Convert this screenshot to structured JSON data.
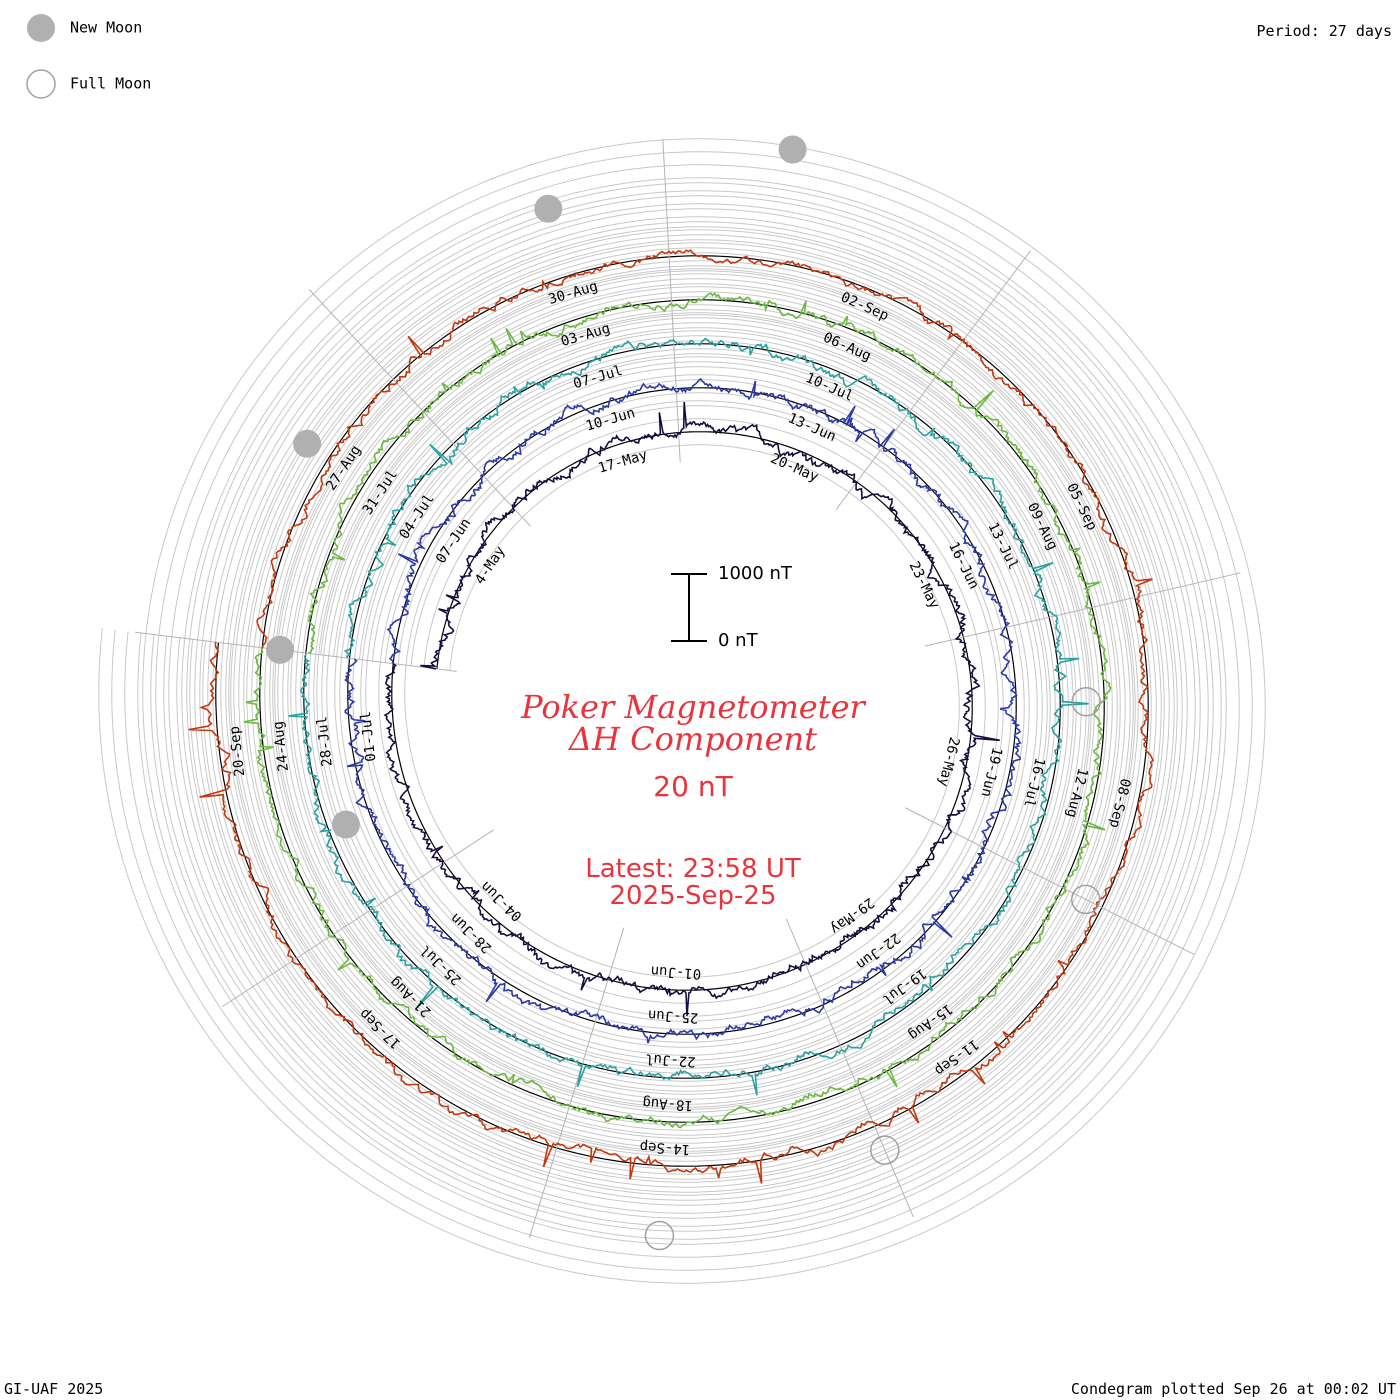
{
  "page": {
    "period_label": "Period: 27 days",
    "footer_left": "GI-UAF 2025",
    "footer_right": "Condegram plotted Sep 26 at 00:02 UT"
  },
  "legend": {
    "new_moon_label": "New Moon",
    "full_moon_label": "Full Moon",
    "new_moon_color": "#b0b0b0",
    "full_moon_color": "#a0a0a0"
  },
  "center": {
    "title_line1": "Poker Magnetometer",
    "title_line2": "ΔH Component",
    "value": "20 nT",
    "latest": "Latest: 23:58 UT",
    "date": "2025-Sep-25",
    "scale_top": "1000 nT",
    "scale_bottom": "0 nT",
    "title_color": "#e8343c"
  },
  "chart_data": {
    "type": "line",
    "title": "Poker Magnetometer ΔH Component",
    "subtitle": "20 nT",
    "period_days": 27,
    "latest": "Latest: 23:58 UT",
    "latest_date": "2025-Sep-25",
    "scale_bar": [
      "0 nT",
      "1000 nT"
    ],
    "turns": [
      {
        "start": "2025-05-02",
        "color": "#1a0a40",
        "labels": [
          "4-May",
          "17-May",
          "20-May",
          "23-May",
          "26-May",
          "29-May",
          "01-Jun",
          "04-Jun"
        ]
      },
      {
        "start": "2025-05-29",
        "color": "#2a3aa6",
        "labels": [
          "07-Jun",
          "10-Jun",
          "13-Jun",
          "16-Jun",
          "19-Jun",
          "22-Jun",
          "25-Jun",
          "28-Jun",
          "01-Jul"
        ]
      },
      {
        "start": "2025-06-25",
        "color": "#2aa0a0",
        "labels": [
          "04-Jul",
          "07-Jul",
          "10-Jul",
          "13-Jul",
          "16-Jul",
          "19-Jul",
          "22-Jul",
          "25-Jul",
          "28-Jul"
        ]
      },
      {
        "start": "2025-07-22",
        "color": "#6ab840",
        "labels": [
          "31-Jul",
          "03-Aug",
          "06-Aug",
          "09-Aug",
          "12-Aug",
          "15-Aug",
          "18-Aug",
          "21-Aug",
          "24-Aug"
        ]
      },
      {
        "start": "2025-08-18",
        "color": "#c03a10",
        "labels": [
          "27-Aug",
          "30-Aug",
          "02-Sep",
          "05-Sep",
          "08-Sep",
          "11-Sep",
          "14-Sep",
          "17-Sep",
          "20-Sep"
        ]
      }
    ],
    "moon_phases": [
      {
        "type": "new",
        "date": "2025-05-27"
      },
      {
        "type": "full",
        "date": "2025-06-11"
      },
      {
        "type": "new",
        "date": "2025-06-25"
      },
      {
        "type": "full",
        "date": "2025-07-10"
      },
      {
        "type": "new",
        "date": "2025-07-24"
      },
      {
        "type": "full",
        "date": "2025-08-09"
      },
      {
        "type": "new",
        "date": "2025-08-23"
      },
      {
        "type": "full",
        "date": "2025-09-07"
      },
      {
        "type": "new",
        "date": "2025-09-21"
      }
    ]
  }
}
